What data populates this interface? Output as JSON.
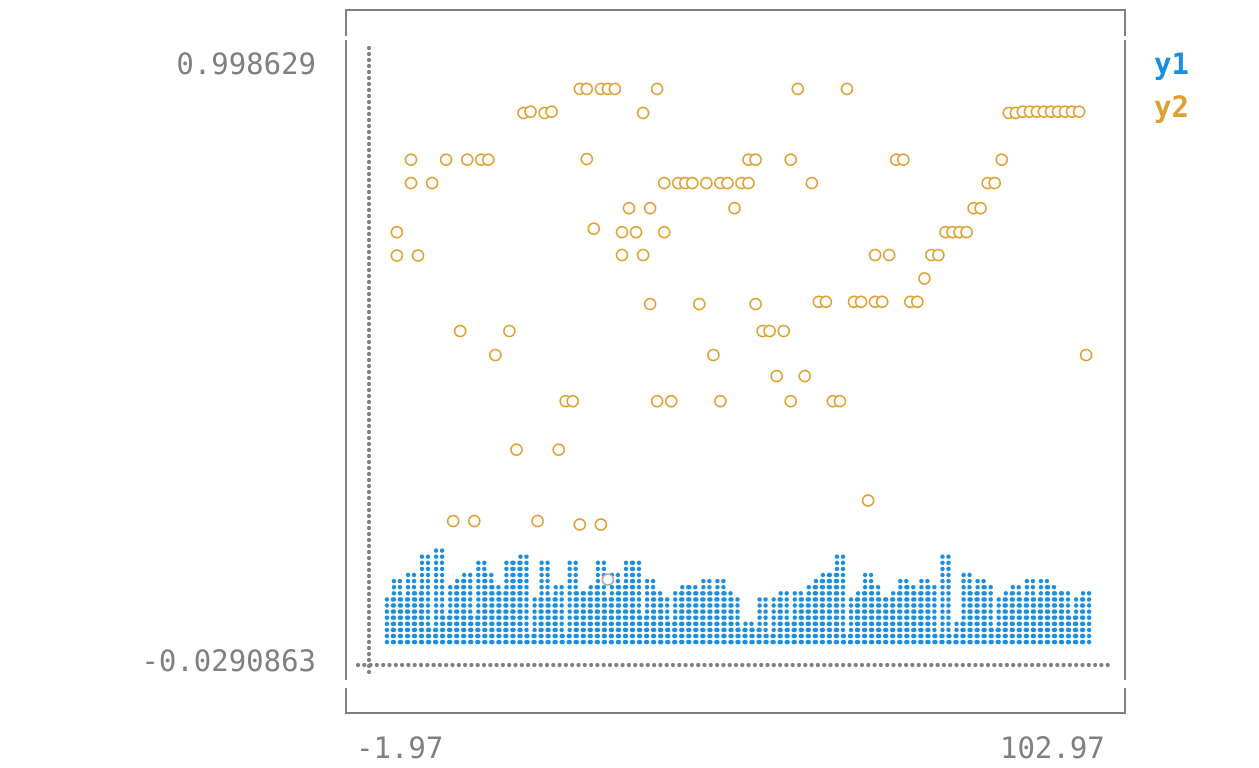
{
  "chart_data": {
    "type": "scatter",
    "title": "",
    "xlabel": "",
    "ylabel": "",
    "xlim": [
      -1.97,
      102.97
    ],
    "ylim": [
      -0.0290863,
      0.998629
    ],
    "x_tick_labels": [
      "-1.97",
      "102.97"
    ],
    "y_tick_labels": [
      "0.998629",
      "-0.0290863"
    ],
    "legend_position": "top-right",
    "grid": false,
    "colors": {
      "y1": "#1a8fe0",
      "y2": "#e0a030",
      "overlap": "#a9a9a9",
      "axis": "#808080"
    },
    "series": [
      {
        "name": "y1",
        "style": "dense-dots",
        "x": [
          1,
          2,
          3,
          4,
          5,
          6,
          7,
          8,
          9,
          10,
          11,
          12,
          13,
          14,
          15,
          16,
          17,
          18,
          19,
          20,
          21,
          22,
          23,
          24,
          25,
          26,
          27,
          28,
          29,
          30,
          31,
          32,
          33,
          34,
          35,
          36,
          37,
          38,
          39,
          40,
          41,
          42,
          43,
          44,
          45,
          46,
          47,
          48,
          49,
          50,
          51,
          52,
          53,
          54,
          55,
          56,
          57,
          58,
          59,
          60,
          61,
          62,
          63,
          64,
          65,
          66,
          67,
          68,
          69,
          70,
          71,
          72,
          73,
          74,
          75,
          76,
          77,
          78,
          79,
          80,
          81,
          82,
          83,
          84,
          85,
          86,
          87,
          88,
          89,
          90,
          91,
          92,
          93,
          94,
          95,
          96,
          97,
          98,
          99,
          100
        ],
        "y": [
          0.086,
          0.123,
          0.086,
          0.135,
          0.098,
          0.16,
          0.037,
          0.172,
          0.061,
          0.11,
          0.123,
          0.135,
          0.061,
          0.148,
          0.135,
          0.11,
          0.098,
          0.147,
          0.148,
          0.16,
          0.024,
          0.086,
          0.147,
          0.086,
          0.11,
          0.024,
          0.148,
          0.098,
          0.098,
          0.11,
          0.148,
          0.086,
          0.135,
          0.11,
          0.148,
          0.148,
          0.061,
          0.123,
          0.098,
          0.086,
          0.049,
          0.098,
          0.11,
          0.11,
          0.098,
          0.123,
          0.098,
          0.123,
          0.098,
          0.086,
          0.037,
          0.049,
          0.037,
          0.086,
          0.024,
          0.086,
          0.098,
          0.049,
          0.098,
          0.086,
          0.11,
          0.123,
          0.135,
          0.135,
          0.16,
          0.024,
          0.086,
          0.098,
          0.135,
          0.11,
          0.086,
          0.086,
          0.098,
          0.123,
          0.11,
          0.098,
          0.123,
          0.11,
          0.024,
          0.16,
          0.024,
          0.049,
          0.135,
          0.098,
          0.123,
          0.11,
          0.037,
          0.086,
          0.098,
          0.11,
          0.086,
          0.123,
          0.086,
          0.123,
          0.11,
          0.098,
          0.098,
          0.061,
          0.086,
          0.098
        ]
      },
      {
        "name": "y2",
        "style": "open-circles",
        "x": [
          2,
          2,
          4,
          4,
          5,
          7,
          9,
          10,
          11,
          12,
          13,
          14,
          15,
          16,
          18,
          19,
          20,
          21,
          22,
          23,
          24,
          25,
          26,
          27,
          28,
          28,
          29,
          29,
          30,
          31,
          31,
          32,
          32,
          33,
          34,
          34,
          35,
          36,
          37,
          37,
          38,
          38,
          39,
          39,
          40,
          40,
          41,
          42,
          43,
          44,
          45,
          46,
          47,
          48,
          48,
          49,
          50,
          51,
          52,
          52,
          53,
          53,
          54,
          55,
          56,
          57,
          58,
          58,
          59,
          60,
          61,
          62,
          63,
          64,
          65,
          66,
          67,
          68,
          69,
          70,
          70,
          71,
          72,
          73,
          74,
          75,
          76,
          77,
          78,
          79,
          80,
          81,
          82,
          83,
          84,
          85,
          86,
          87,
          88,
          89,
          90,
          91,
          92,
          93,
          94,
          95,
          96,
          97,
          98,
          99,
          100
        ],
        "y": [
          0.711,
          0.671,
          0.795,
          0.835,
          0.671,
          0.795,
          0.835,
          0.217,
          0.542,
          0.835,
          0.217,
          0.835,
          0.835,
          0.501,
          0.542,
          0.339,
          0.915,
          0.917,
          0.217,
          0.915,
          0.917,
          0.339,
          0.422,
          0.422,
          0.956,
          0.211,
          0.956,
          0.836,
          0.717,
          0.211,
          0.956,
          0.956,
          0.117,
          0.956,
          0.711,
          0.672,
          0.752,
          0.711,
          0.915,
          0.672,
          0.588,
          0.752,
          0.422,
          0.956,
          0.795,
          0.711,
          0.422,
          0.795,
          0.795,
          0.795,
          0.588,
          0.795,
          0.501,
          0.795,
          0.422,
          0.795,
          0.752,
          0.795,
          0.835,
          0.795,
          0.835,
          0.588,
          0.542,
          0.542,
          0.465,
          0.542,
          0.422,
          0.835,
          0.956,
          0.465,
          0.795,
          0.592,
          0.592,
          0.422,
          0.422,
          0.956,
          0.592,
          0.592,
          0.252,
          0.592,
          0.672,
          0.592,
          0.672,
          0.835,
          0.835,
          0.592,
          0.592,
          0.632,
          0.672,
          0.672,
          0.711,
          0.711,
          0.711,
          0.711,
          0.752,
          0.752,
          0.795,
          0.795,
          0.835,
          0.915,
          0.915,
          0.917,
          0.917,
          0.917,
          0.917,
          0.917,
          0.917,
          0.917,
          0.917,
          0.917,
          0.501
        ]
      }
    ]
  }
}
